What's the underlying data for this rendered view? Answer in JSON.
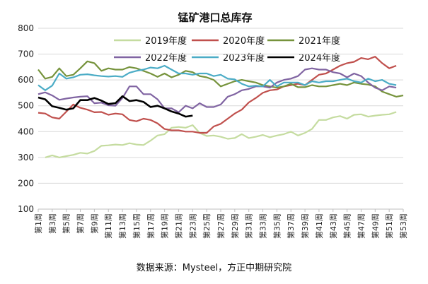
{
  "chart_data": {
    "type": "line",
    "title": "锰矿港口总库存",
    "xlabel": "",
    "ylabel": "",
    "ylim": [
      100,
      800
    ],
    "yticks": [
      100,
      200,
      300,
      400,
      500,
      600,
      700,
      800
    ],
    "x_ticks": [
      "第1周",
      "第3周",
      "第5周",
      "第7周",
      "第9周",
      "第11周",
      "第13周",
      "第15周",
      "第17周",
      "第19周",
      "第21周",
      "第23周",
      "第25周",
      "第27周",
      "第29周",
      "第31周",
      "第33周",
      "第35周",
      "第37周",
      "第39周",
      "第41周",
      "第43周",
      "第45周",
      "第47周",
      "第49周",
      "第51周",
      "第53周"
    ],
    "x_range": [
      1,
      53
    ],
    "grid": "horizontal",
    "legend_position": "top",
    "series": [
      {
        "name": "2019年度",
        "color": "#c5dca0",
        "x": [
          2,
          3,
          4,
          5,
          6,
          7,
          8,
          9,
          10,
          11,
          12,
          13,
          14,
          15,
          16,
          17,
          18,
          19,
          20,
          21,
          22,
          23,
          24,
          25,
          26,
          27,
          28,
          29,
          30,
          31,
          32,
          33,
          34,
          35,
          36,
          37,
          38,
          39,
          40,
          41,
          42,
          43,
          44,
          45,
          46,
          47,
          48,
          49,
          50,
          51,
          52
        ],
        "values": [
          300,
          308,
          300,
          305,
          310,
          318,
          315,
          325,
          345,
          347,
          350,
          348,
          355,
          350,
          348,
          365,
          385,
          390,
          415,
          418,
          415,
          425,
          395,
          383,
          385,
          380,
          372,
          375,
          390,
          375,
          380,
          387,
          378,
          385,
          390,
          400,
          385,
          395,
          410,
          445,
          445,
          455,
          460,
          450,
          465,
          467,
          458,
          462,
          465,
          467,
          476
        ]
      },
      {
        "name": "2020年度",
        "color": "#c0504d",
        "x": [
          1,
          2,
          3,
          4,
          5,
          6,
          7,
          8,
          9,
          10,
          11,
          12,
          13,
          14,
          15,
          16,
          17,
          18,
          19,
          20,
          21,
          22,
          23,
          24,
          25,
          26,
          27,
          28,
          29,
          30,
          31,
          32,
          33,
          34,
          35,
          36,
          37,
          38,
          39,
          40,
          41,
          42,
          43,
          44,
          45,
          46,
          47,
          48,
          49,
          50,
          51,
          52
        ],
        "values": [
          473,
          470,
          455,
          450,
          477,
          505,
          492,
          485,
          475,
          476,
          465,
          470,
          467,
          445,
          440,
          450,
          445,
          432,
          410,
          405,
          405,
          400,
          400,
          395,
          395,
          420,
          430,
          450,
          470,
          485,
          513,
          530,
          550,
          560,
          563,
          575,
          580,
          585,
          580,
          600,
          620,
          625,
          640,
          655,
          665,
          670,
          685,
          680,
          690,
          665,
          645,
          655
        ]
      },
      {
        "name": "2021年度",
        "color": "#76933c",
        "x": [
          1,
          2,
          3,
          4,
          5,
          6,
          7,
          8,
          9,
          10,
          11,
          12,
          13,
          14,
          15,
          16,
          17,
          18,
          19,
          20,
          21,
          22,
          23,
          24,
          25,
          26,
          27,
          28,
          29,
          30,
          31,
          32,
          33,
          34,
          35,
          36,
          37,
          38,
          39,
          40,
          41,
          42,
          43,
          44,
          45,
          46,
          47,
          48,
          49,
          50,
          51,
          52,
          53
        ],
        "values": [
          640,
          605,
          612,
          645,
          615,
          620,
          645,
          672,
          665,
          635,
          645,
          640,
          640,
          650,
          645,
          635,
          625,
          612,
          625,
          610,
          620,
          635,
          630,
          615,
          610,
          600,
          575,
          585,
          595,
          600,
          595,
          590,
          580,
          575,
          570,
          575,
          585,
          572,
          572,
          580,
          575,
          575,
          580,
          585,
          580,
          590,
          585,
          582,
          575,
          555,
          545,
          535,
          540
        ]
      },
      {
        "name": "2022年度",
        "color": "#8064a2",
        "x": [
          1,
          2,
          3,
          4,
          5,
          6,
          7,
          8,
          9,
          10,
          11,
          12,
          13,
          14,
          15,
          16,
          17,
          18,
          19,
          20,
          21,
          22,
          23,
          24,
          25,
          26,
          27,
          28,
          29,
          30,
          31,
          32,
          33,
          34,
          35,
          36,
          37,
          38,
          39,
          40,
          41,
          42,
          43,
          44,
          45,
          46,
          47,
          48,
          49,
          50,
          51,
          52
        ],
        "values": [
          545,
          552,
          540,
          523,
          528,
          532,
          535,
          537,
          510,
          512,
          502,
          500,
          530,
          575,
          575,
          545,
          545,
          525,
          490,
          490,
          475,
          500,
          490,
          510,
          495,
          495,
          505,
          535,
          545,
          560,
          565,
          575,
          575,
          570,
          590,
          600,
          605,
          615,
          640,
          645,
          640,
          640,
          630,
          625,
          610,
          625,
          615,
          590,
          570,
          560,
          575,
          570
        ]
      },
      {
        "name": "2023年度",
        "color": "#4bacc6",
        "x": [
          1,
          2,
          3,
          4,
          5,
          6,
          7,
          8,
          9,
          10,
          11,
          12,
          13,
          14,
          15,
          16,
          17,
          18,
          19,
          20,
          21,
          22,
          23,
          24,
          25,
          26,
          27,
          28,
          29,
          30,
          31,
          32,
          33,
          34,
          35,
          36,
          37,
          38,
          39,
          40,
          41,
          42,
          43,
          44,
          45,
          46,
          47,
          48,
          49,
          50,
          51,
          52
        ],
        "values": [
          580,
          560,
          578,
          625,
          605,
          610,
          620,
          622,
          618,
          615,
          613,
          615,
          612,
          628,
          635,
          640,
          648,
          645,
          655,
          640,
          625,
          625,
          620,
          625,
          625,
          615,
          620,
          605,
          602,
          585,
          575,
          578,
          575,
          600,
          575,
          590,
          590,
          590,
          580,
          595,
          590,
          595,
          595,
          600,
          605,
          595,
          590,
          605,
          595,
          600,
          585,
          580
        ]
      },
      {
        "name": "2024年度",
        "color": "#000000",
        "x": [
          1,
          2,
          3,
          4,
          5,
          6,
          7,
          8,
          9,
          10,
          11,
          12,
          13,
          14,
          15,
          16,
          17,
          18,
          19,
          20,
          21,
          22,
          23
        ],
        "values": [
          532,
          525,
          498,
          492,
          485,
          490,
          522,
          522,
          530,
          520,
          507,
          510,
          537,
          518,
          522,
          515,
          495,
          500,
          490,
          478,
          470,
          458,
          462
        ]
      }
    ]
  },
  "source_text": "数据来源：Mysteel，方正中期研究院"
}
